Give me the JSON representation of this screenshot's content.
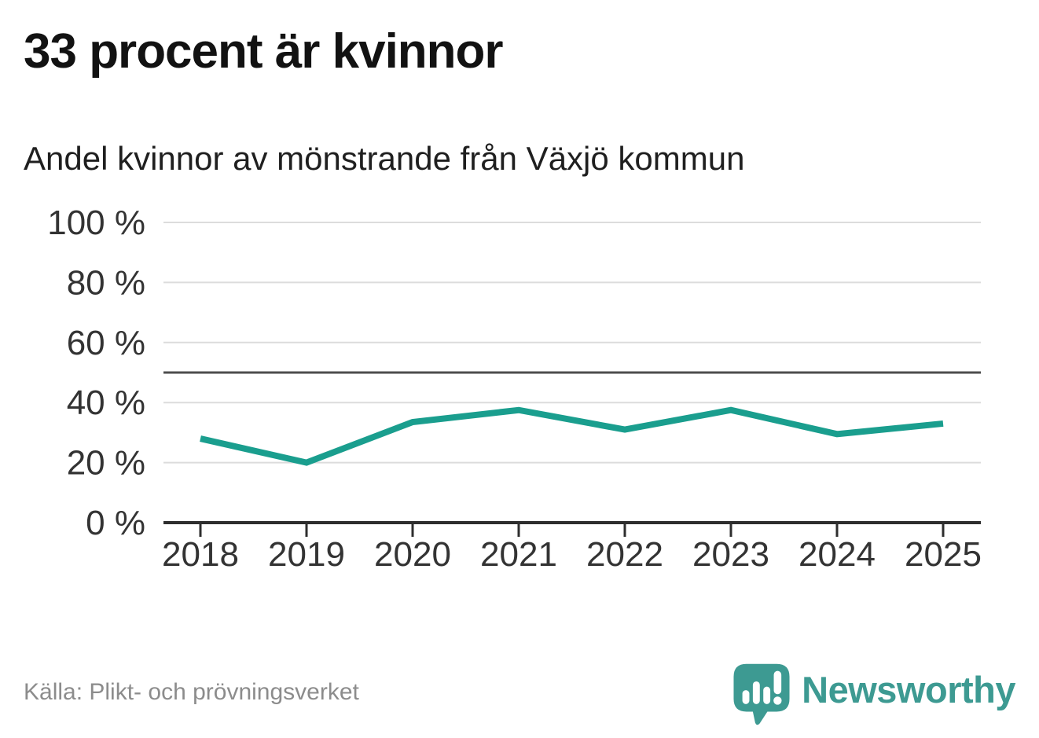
{
  "header": {
    "title": "33 procent är kvinnor",
    "subtitle": "Andel kvinnor av mönstrande från Växjö kommun"
  },
  "footer": {
    "source": "Källa: Plikt- och prövningsverket",
    "brand_name": "Newsworthy"
  },
  "colors": {
    "background": "#ffffff",
    "line": "#1a9e8e",
    "grid": "#dcdcdc",
    "reference_line": "#4d4d4d",
    "axis": "#2e2e2e",
    "tick_labels": "#333333",
    "source_text": "#8c8c8c",
    "brand_teal": "#3d9a92"
  },
  "chart_data": {
    "type": "line",
    "title": "33 procent är kvinnor",
    "subtitle": "Andel kvinnor av mönstrande från Växjö kommun",
    "categories": [
      "2018",
      "2019",
      "2020",
      "2021",
      "2022",
      "2023",
      "2024",
      "2025"
    ],
    "series": [
      {
        "name": "Andel kvinnor av mönstrande",
        "values": [
          28,
          20,
          33.5,
          37.5,
          31,
          37.5,
          29.5,
          33
        ]
      }
    ],
    "xlabel": "",
    "ylabel": "",
    "ylim": [
      0,
      100
    ],
    "yticks": [
      0,
      20,
      40,
      60,
      80,
      100
    ],
    "ytick_suffix": " %",
    "reference_line": 50,
    "grid": "horizontal",
    "legend": "none",
    "line_width": 8
  }
}
